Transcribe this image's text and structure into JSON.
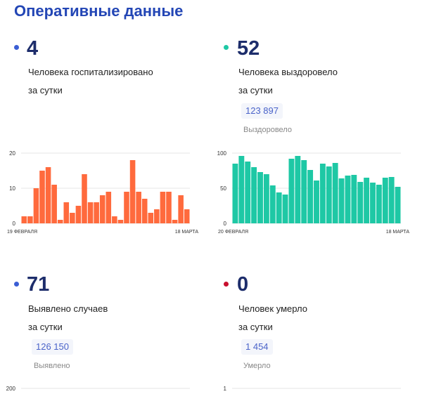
{
  "title": "Оперативные данные",
  "hospitalized": {
    "value": "4",
    "line1": "Человека госпитализировано",
    "line2": "за сутки",
    "dot_color": "#3b5ed4"
  },
  "recovered": {
    "value": "52",
    "line1": "Человека выздоровело",
    "line2": "за сутки",
    "total": "123 897",
    "total_label": "Выздоровело",
    "dot_color": "#1ec8a5"
  },
  "cases": {
    "value": "71",
    "line1": "Выявлено случаев",
    "line2": "за сутки",
    "total": "126 150",
    "total_label": "Выявлено",
    "dot_color": "#3b5ed4"
  },
  "deaths": {
    "value": "0",
    "line1": "Человек умерло",
    "line2": "за сутки",
    "total": "1 454",
    "total_label": "Умерло",
    "dot_color": "#c8102e"
  },
  "chart_data": [
    {
      "type": "bar",
      "color": "#ff6a3d",
      "x_start_label": "19 ФЕВРАЛЯ",
      "x_end_label": "18 МАРТА",
      "yticks": [
        "0",
        "10",
        "20"
      ],
      "ylim": [
        0,
        20
      ],
      "values": [
        2,
        2,
        10,
        15,
        16,
        11,
        1,
        6,
        3,
        5,
        14,
        6,
        6,
        8,
        9,
        2,
        1,
        9,
        18,
        9,
        7,
        3,
        4,
        9,
        9,
        1,
        8,
        4
      ]
    },
    {
      "type": "bar",
      "color": "#1ec8a5",
      "x_start_label": "20 ФЕВРАЛЯ",
      "x_end_label": "18 МАРТА",
      "yticks": [
        "0",
        "50",
        "100"
      ],
      "ylim": [
        0,
        100
      ],
      "values": [
        85,
        96,
        88,
        80,
        73,
        70,
        54,
        44,
        41,
        92,
        96,
        90,
        76,
        61,
        85,
        81,
        86,
        64,
        68,
        69,
        59,
        65,
        58,
        55,
        65,
        66,
        52
      ]
    },
    {
      "type": "bar",
      "color": "#3b5ed4",
      "yticks": [
        "200"
      ],
      "ylim": [
        0,
        200
      ],
      "values": []
    },
    {
      "type": "bar",
      "color": "#c8102e",
      "yticks": [
        "1"
      ],
      "ylim": [
        0,
        1
      ],
      "values": []
    }
  ]
}
